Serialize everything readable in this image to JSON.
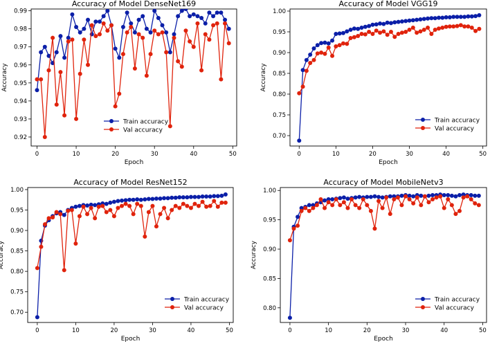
{
  "colors": {
    "train": "#0b1fa8",
    "val": "#e0230c",
    "axis": "#000000"
  },
  "chart_data": [
    {
      "type": "line",
      "title": "Accuracy of Model DenseNet169",
      "xlabel": "Epoch",
      "ylabel": "Accuracy",
      "xlim": [
        -1.5,
        51
      ],
      "ylim": [
        0.915,
        0.991
      ],
      "xticks": [
        0,
        10,
        20,
        30,
        40,
        50
      ],
      "yticks": [
        0.92,
        0.93,
        0.94,
        0.95,
        0.96,
        0.97,
        0.98,
        0.99
      ],
      "legend": "bottom-center",
      "grid": false,
      "x": [
        0,
        1,
        2,
        3,
        4,
        5,
        6,
        7,
        8,
        9,
        10,
        11,
        12,
        13,
        14,
        15,
        16,
        17,
        18,
        19,
        20,
        21,
        22,
        23,
        24,
        25,
        26,
        27,
        28,
        29,
        30,
        31,
        32,
        33,
        34,
        35,
        36,
        37,
        38,
        39,
        40,
        41,
        42,
        43,
        44,
        45,
        46,
        47,
        48,
        49
      ],
      "series": [
        {
          "name": "Train accuracy",
          "color": "#0b1fa8",
          "values": [
            0.946,
            0.967,
            0.97,
            0.965,
            0.961,
            0.967,
            0.976,
            0.964,
            0.975,
            0.988,
            0.981,
            0.978,
            0.98,
            0.985,
            0.977,
            0.984,
            0.984,
            0.987,
            0.99,
            0.982,
            0.969,
            0.964,
            0.981,
            0.989,
            0.983,
            0.978,
            0.985,
            0.987,
            0.98,
            0.978,
            0.99,
            0.986,
            0.982,
            0.978,
            0.967,
            0.977,
            0.987,
            0.99,
            0.991,
            0.987,
            0.988,
            0.987,
            0.986,
            0.983,
            0.989,
            0.987,
            0.989,
            0.989,
            0.985,
            0.98
          ]
        },
        {
          "name": "Val accuracy",
          "color": "#e0230c",
          "values": [
            0.952,
            0.952,
            0.92,
            0.957,
            0.975,
            0.938,
            0.956,
            0.932,
            0.973,
            0.974,
            0.93,
            0.955,
            0.974,
            0.96,
            0.982,
            0.976,
            0.977,
            0.983,
            0.979,
            0.982,
            0.937,
            0.944,
            0.966,
            0.978,
            0.981,
            0.958,
            0.977,
            0.975,
            0.954,
            0.966,
            0.979,
            0.977,
            0.978,
            0.967,
            0.926,
            0.975,
            0.962,
            0.959,
            0.979,
            0.973,
            0.97,
            0.983,
            0.957,
            0.977,
            0.974,
            0.982,
            0.983,
            0.952,
            0.983,
            0.972
          ]
        }
      ]
    },
    {
      "type": "line",
      "title": "Accuracy of Model VGG19",
      "xlabel": "Epoch",
      "ylabel": "Accuracy",
      "xlim": [
        -2.5,
        51
      ],
      "ylim": [
        0.675,
        1.005
      ],
      "xticks": [
        0,
        10,
        20,
        30,
        40,
        50
      ],
      "yticks": [
        0.7,
        0.75,
        0.8,
        0.85,
        0.9,
        0.95,
        1.0
      ],
      "legend": "bottom-right",
      "grid": false,
      "x": [
        0,
        1,
        2,
        3,
        4,
        5,
        6,
        7,
        8,
        9,
        10,
        11,
        12,
        13,
        14,
        15,
        16,
        17,
        18,
        19,
        20,
        21,
        22,
        23,
        24,
        25,
        26,
        27,
        28,
        29,
        30,
        31,
        32,
        33,
        34,
        35,
        36,
        37,
        38,
        39,
        40,
        41,
        42,
        43,
        44,
        45,
        46,
        47,
        48,
        49
      ],
      "series": [
        {
          "name": "Train accuracy",
          "color": "#0b1fa8",
          "values": [
            0.688,
            0.858,
            0.882,
            0.895,
            0.91,
            0.918,
            0.923,
            0.924,
            0.922,
            0.929,
            0.945,
            0.946,
            0.947,
            0.951,
            0.955,
            0.958,
            0.957,
            0.96,
            0.962,
            0.964,
            0.967,
            0.968,
            0.97,
            0.969,
            0.972,
            0.971,
            0.973,
            0.974,
            0.975,
            0.976,
            0.977,
            0.978,
            0.979,
            0.98,
            0.981,
            0.982,
            0.983,
            0.983,
            0.984,
            0.984,
            0.985,
            0.985,
            0.986,
            0.986,
            0.986,
            0.986,
            0.987,
            0.987,
            0.988,
            0.99
          ]
        },
        {
          "name": "Val accuracy",
          "color": "#e0230c",
          "values": [
            0.802,
            0.818,
            0.856,
            0.875,
            0.882,
            0.898,
            0.9,
            0.897,
            0.912,
            0.892,
            0.915,
            0.918,
            0.922,
            0.921,
            0.935,
            0.937,
            0.94,
            0.945,
            0.944,
            0.95,
            0.945,
            0.953,
            0.948,
            0.951,
            0.943,
            0.95,
            0.938,
            0.945,
            0.948,
            0.95,
            0.955,
            0.96,
            0.948,
            0.951,
            0.955,
            0.96,
            0.945,
            0.955,
            0.958,
            0.96,
            0.962,
            0.963,
            0.963,
            0.964,
            0.966,
            0.963,
            0.963,
            0.96,
            0.952,
            0.957
          ]
        }
      ]
    },
    {
      "type": "line",
      "title": "Accuracy of Model ResNet152",
      "xlabel": "Epoch",
      "ylabel": "Accuracy",
      "xlim": [
        -2.5,
        51
      ],
      "ylim": [
        0.675,
        1.005
      ],
      "xticks": [
        0,
        10,
        20,
        30,
        40,
        50
      ],
      "yticks": [
        0.7,
        0.75,
        0.8,
        0.85,
        0.9,
        0.95,
        1.0
      ],
      "legend": "bottom-right",
      "grid": false,
      "x": [
        0,
        1,
        2,
        3,
        4,
        5,
        6,
        7,
        8,
        9,
        10,
        11,
        12,
        13,
        14,
        15,
        16,
        17,
        18,
        19,
        20,
        21,
        22,
        23,
        24,
        25,
        26,
        27,
        28,
        29,
        30,
        31,
        32,
        33,
        34,
        35,
        36,
        37,
        38,
        39,
        40,
        41,
        42,
        43,
        44,
        45,
        46,
        47,
        48,
        49
      ],
      "series": [
        {
          "name": "Train accuracy",
          "color": "#0b1fa8",
          "values": [
            0.688,
            0.875,
            0.912,
            0.925,
            0.935,
            0.942,
            0.945,
            0.938,
            0.95,
            0.955,
            0.958,
            0.96,
            0.962,
            0.961,
            0.963,
            0.962,
            0.964,
            0.966,
            0.965,
            0.968,
            0.97,
            0.972,
            0.973,
            0.974,
            0.975,
            0.975,
            0.976,
            0.975,
            0.976,
            0.977,
            0.977,
            0.978,
            0.978,
            0.979,
            0.979,
            0.98,
            0.98,
            0.981,
            0.981,
            0.981,
            0.982,
            0.982,
            0.982,
            0.983,
            0.983,
            0.983,
            0.984,
            0.984,
            0.985,
            0.988
          ]
        },
        {
          "name": "Val accuracy",
          "color": "#e0230c",
          "values": [
            0.808,
            0.86,
            0.915,
            0.93,
            0.932,
            0.945,
            0.94,
            0.803,
            0.948,
            0.95,
            0.868,
            0.935,
            0.958,
            0.94,
            0.955,
            0.93,
            0.958,
            0.96,
            0.945,
            0.95,
            0.935,
            0.955,
            0.96,
            0.965,
            0.96,
            0.94,
            0.965,
            0.96,
            0.885,
            0.945,
            0.96,
            0.91,
            0.94,
            0.955,
            0.93,
            0.95,
            0.96,
            0.955,
            0.965,
            0.96,
            0.955,
            0.965,
            0.96,
            0.97,
            0.958,
            0.96,
            0.972,
            0.958,
            0.968,
            0.968
          ]
        }
      ]
    },
    {
      "type": "line",
      "title": "Accuracy of Model MobileNetv3",
      "xlabel": "Epoch",
      "ylabel": "Accuracy",
      "xlim": [
        -2.5,
        51
      ],
      "ylim": [
        0.775,
        1.005
      ],
      "xticks": [
        0,
        10,
        20,
        30,
        40,
        50
      ],
      "yticks": [
        0.8,
        0.85,
        0.9,
        0.95,
        1.0
      ],
      "legend": "bottom-right",
      "grid": false,
      "x": [
        0,
        1,
        2,
        3,
        4,
        5,
        6,
        7,
        8,
        9,
        10,
        11,
        12,
        13,
        14,
        15,
        16,
        17,
        18,
        19,
        20,
        21,
        22,
        23,
        24,
        25,
        26,
        27,
        28,
        29,
        30,
        31,
        32,
        33,
        34,
        35,
        36,
        37,
        38,
        39,
        40,
        41,
        42,
        43,
        44,
        45,
        46,
        47,
        48,
        49
      ],
      "series": [
        {
          "name": "Train accuracy",
          "color": "#0b1fa8",
          "values": [
            0.783,
            0.938,
            0.955,
            0.97,
            0.972,
            0.975,
            0.975,
            0.978,
            0.98,
            0.983,
            0.985,
            0.985,
            0.986,
            0.987,
            0.988,
            0.986,
            0.987,
            0.988,
            0.989,
            0.988,
            0.989,
            0.989,
            0.99,
            0.989,
            0.988,
            0.989,
            0.99,
            0.99,
            0.99,
            0.991,
            0.992,
            0.991,
            0.99,
            0.992,
            0.991,
            0.99,
            0.991,
            0.992,
            0.992,
            0.993,
            0.992,
            0.992,
            0.991,
            0.99,
            0.992,
            0.993,
            0.992,
            0.992,
            0.991,
            0.991
          ]
        },
        {
          "name": "Val accuracy",
          "color": "#e0230c",
          "values": [
            0.915,
            0.935,
            0.94,
            0.965,
            0.97,
            0.965,
            0.97,
            0.975,
            0.985,
            0.97,
            0.98,
            0.975,
            0.985,
            0.975,
            0.98,
            0.97,
            0.985,
            0.975,
            0.97,
            0.985,
            0.975,
            0.965,
            0.935,
            0.982,
            0.97,
            0.988,
            0.96,
            0.985,
            0.988,
            0.975,
            0.99,
            0.985,
            0.978,
            0.988,
            0.975,
            0.99,
            0.98,
            0.985,
            0.988,
            0.99,
            0.97,
            0.985,
            0.975,
            0.96,
            0.965,
            0.988,
            0.99,
            0.985,
            0.978,
            0.975
          ]
        }
      ]
    }
  ]
}
